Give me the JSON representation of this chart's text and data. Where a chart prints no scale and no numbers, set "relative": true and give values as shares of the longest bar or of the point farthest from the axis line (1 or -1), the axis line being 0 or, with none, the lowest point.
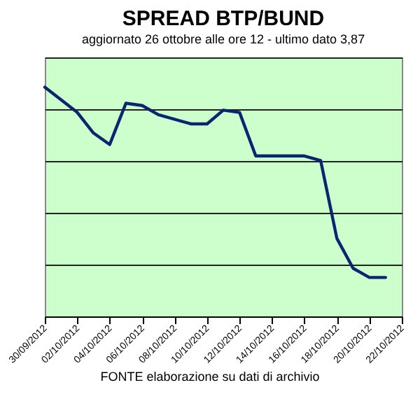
{
  "chart_data": {
    "type": "line",
    "title": "SPREAD  BTP/BUND",
    "subtitle": "aggiornato 26 ottobre alle ore 12 - ultimo dato 3,87",
    "annotations": [
      "FONTE elaborazione su dati di archivio"
    ],
    "relative": true,
    "grid": "y",
    "x": [
      "2012-09-30",
      "2012-10-02",
      "2012-10-03",
      "2012-10-04",
      "2012-10-05",
      "2012-10-06",
      "2012-10-07",
      "2012-10-09",
      "2012-10-10",
      "2012-10-11",
      "2012-10-12",
      "2012-10-13",
      "2012-10-16",
      "2012-10-17",
      "2012-10-18",
      "2012-10-19",
      "2012-10-20",
      "2012-10-21"
    ],
    "series": [
      {
        "color": "#0d2470",
        "values": [
          1.0,
          0.89,
          0.8,
          0.75,
          0.93,
          0.92,
          0.88,
          0.84,
          0.84,
          0.9,
          0.89,
          0.7,
          0.7,
          0.68,
          0.34,
          0.21,
          0.17,
          0.17
        ]
      }
    ],
    "xlim": [
      "2012-09-30",
      "2012-10-22"
    ],
    "xticks": [
      {
        "value": "2012-09-30",
        "label": "30/09/2012"
      },
      {
        "value": "2012-10-02",
        "label": "02/10/2012"
      },
      {
        "value": "2012-10-04",
        "label": "04/10/2012"
      },
      {
        "value": "2012-10-06",
        "label": "06/10/2012"
      },
      {
        "value": "2012-10-08",
        "label": "08/10/2012"
      },
      {
        "value": "2012-10-10",
        "label": "10/10/2012"
      },
      {
        "value": "2012-10-12",
        "label": "12/10/2012"
      },
      {
        "value": "2012-10-14",
        "label": "14/10/2012"
      },
      {
        "value": "2012-10-16",
        "label": "16/10/2012"
      },
      {
        "value": "2012-10-18",
        "label": "18/10/2012"
      },
      {
        "value": "2012-10-20",
        "label": "20/10/2012"
      },
      {
        "value": "2012-10-22",
        "label": "22/10/2012"
      }
    ],
    "line_style": "solid",
    "marker": "none"
  }
}
